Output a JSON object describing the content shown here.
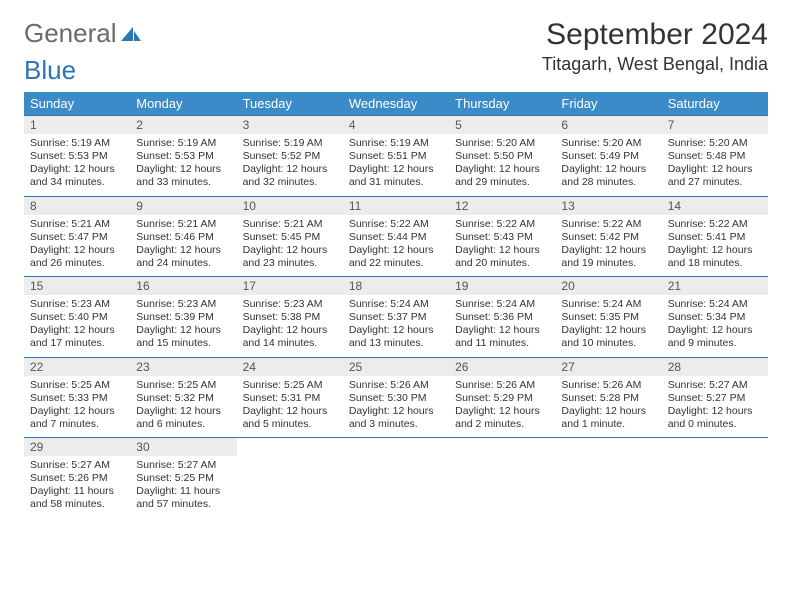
{
  "logo": {
    "text1": "General",
    "text2": "Blue"
  },
  "title": "September 2024",
  "location": "Titagarh, West Bengal, India",
  "colors": {
    "header_bg": "#3b8bc9",
    "header_text": "#ffffff",
    "rule": "#2e75b6",
    "daynum_bg": "#ececec",
    "logo_gray": "#6b6b6b",
    "logo_blue": "#2e75b6",
    "text": "#333333",
    "page_bg": "#ffffff"
  },
  "weekdays": [
    "Sunday",
    "Monday",
    "Tuesday",
    "Wednesday",
    "Thursday",
    "Friday",
    "Saturday"
  ],
  "weeks": [
    [
      {
        "n": "1",
        "sr": "5:19 AM",
        "ss": "5:53 PM",
        "dl": "12 hours and 34 minutes."
      },
      {
        "n": "2",
        "sr": "5:19 AM",
        "ss": "5:53 PM",
        "dl": "12 hours and 33 minutes."
      },
      {
        "n": "3",
        "sr": "5:19 AM",
        "ss": "5:52 PM",
        "dl": "12 hours and 32 minutes."
      },
      {
        "n": "4",
        "sr": "5:19 AM",
        "ss": "5:51 PM",
        "dl": "12 hours and 31 minutes."
      },
      {
        "n": "5",
        "sr": "5:20 AM",
        "ss": "5:50 PM",
        "dl": "12 hours and 29 minutes."
      },
      {
        "n": "6",
        "sr": "5:20 AM",
        "ss": "5:49 PM",
        "dl": "12 hours and 28 minutes."
      },
      {
        "n": "7",
        "sr": "5:20 AM",
        "ss": "5:48 PM",
        "dl": "12 hours and 27 minutes."
      }
    ],
    [
      {
        "n": "8",
        "sr": "5:21 AM",
        "ss": "5:47 PM",
        "dl": "12 hours and 26 minutes."
      },
      {
        "n": "9",
        "sr": "5:21 AM",
        "ss": "5:46 PM",
        "dl": "12 hours and 24 minutes."
      },
      {
        "n": "10",
        "sr": "5:21 AM",
        "ss": "5:45 PM",
        "dl": "12 hours and 23 minutes."
      },
      {
        "n": "11",
        "sr": "5:22 AM",
        "ss": "5:44 PM",
        "dl": "12 hours and 22 minutes."
      },
      {
        "n": "12",
        "sr": "5:22 AM",
        "ss": "5:43 PM",
        "dl": "12 hours and 20 minutes."
      },
      {
        "n": "13",
        "sr": "5:22 AM",
        "ss": "5:42 PM",
        "dl": "12 hours and 19 minutes."
      },
      {
        "n": "14",
        "sr": "5:22 AM",
        "ss": "5:41 PM",
        "dl": "12 hours and 18 minutes."
      }
    ],
    [
      {
        "n": "15",
        "sr": "5:23 AM",
        "ss": "5:40 PM",
        "dl": "12 hours and 17 minutes."
      },
      {
        "n": "16",
        "sr": "5:23 AM",
        "ss": "5:39 PM",
        "dl": "12 hours and 15 minutes."
      },
      {
        "n": "17",
        "sr": "5:23 AM",
        "ss": "5:38 PM",
        "dl": "12 hours and 14 minutes."
      },
      {
        "n": "18",
        "sr": "5:24 AM",
        "ss": "5:37 PM",
        "dl": "12 hours and 13 minutes."
      },
      {
        "n": "19",
        "sr": "5:24 AM",
        "ss": "5:36 PM",
        "dl": "12 hours and 11 minutes."
      },
      {
        "n": "20",
        "sr": "5:24 AM",
        "ss": "5:35 PM",
        "dl": "12 hours and 10 minutes."
      },
      {
        "n": "21",
        "sr": "5:24 AM",
        "ss": "5:34 PM",
        "dl": "12 hours and 9 minutes."
      }
    ],
    [
      {
        "n": "22",
        "sr": "5:25 AM",
        "ss": "5:33 PM",
        "dl": "12 hours and 7 minutes."
      },
      {
        "n": "23",
        "sr": "5:25 AM",
        "ss": "5:32 PM",
        "dl": "12 hours and 6 minutes."
      },
      {
        "n": "24",
        "sr": "5:25 AM",
        "ss": "5:31 PM",
        "dl": "12 hours and 5 minutes."
      },
      {
        "n": "25",
        "sr": "5:26 AM",
        "ss": "5:30 PM",
        "dl": "12 hours and 3 minutes."
      },
      {
        "n": "26",
        "sr": "5:26 AM",
        "ss": "5:29 PM",
        "dl": "12 hours and 2 minutes."
      },
      {
        "n": "27",
        "sr": "5:26 AM",
        "ss": "5:28 PM",
        "dl": "12 hours and 1 minute."
      },
      {
        "n": "28",
        "sr": "5:27 AM",
        "ss": "5:27 PM",
        "dl": "12 hours and 0 minutes."
      }
    ],
    [
      {
        "n": "29",
        "sr": "5:27 AM",
        "ss": "5:26 PM",
        "dl": "11 hours and 58 minutes."
      },
      {
        "n": "30",
        "sr": "5:27 AM",
        "ss": "5:25 PM",
        "dl": "11 hours and 57 minutes."
      },
      null,
      null,
      null,
      null,
      null
    ]
  ],
  "labels": {
    "sunrise": "Sunrise: ",
    "sunset": "Sunset: ",
    "daylight": "Daylight: "
  }
}
